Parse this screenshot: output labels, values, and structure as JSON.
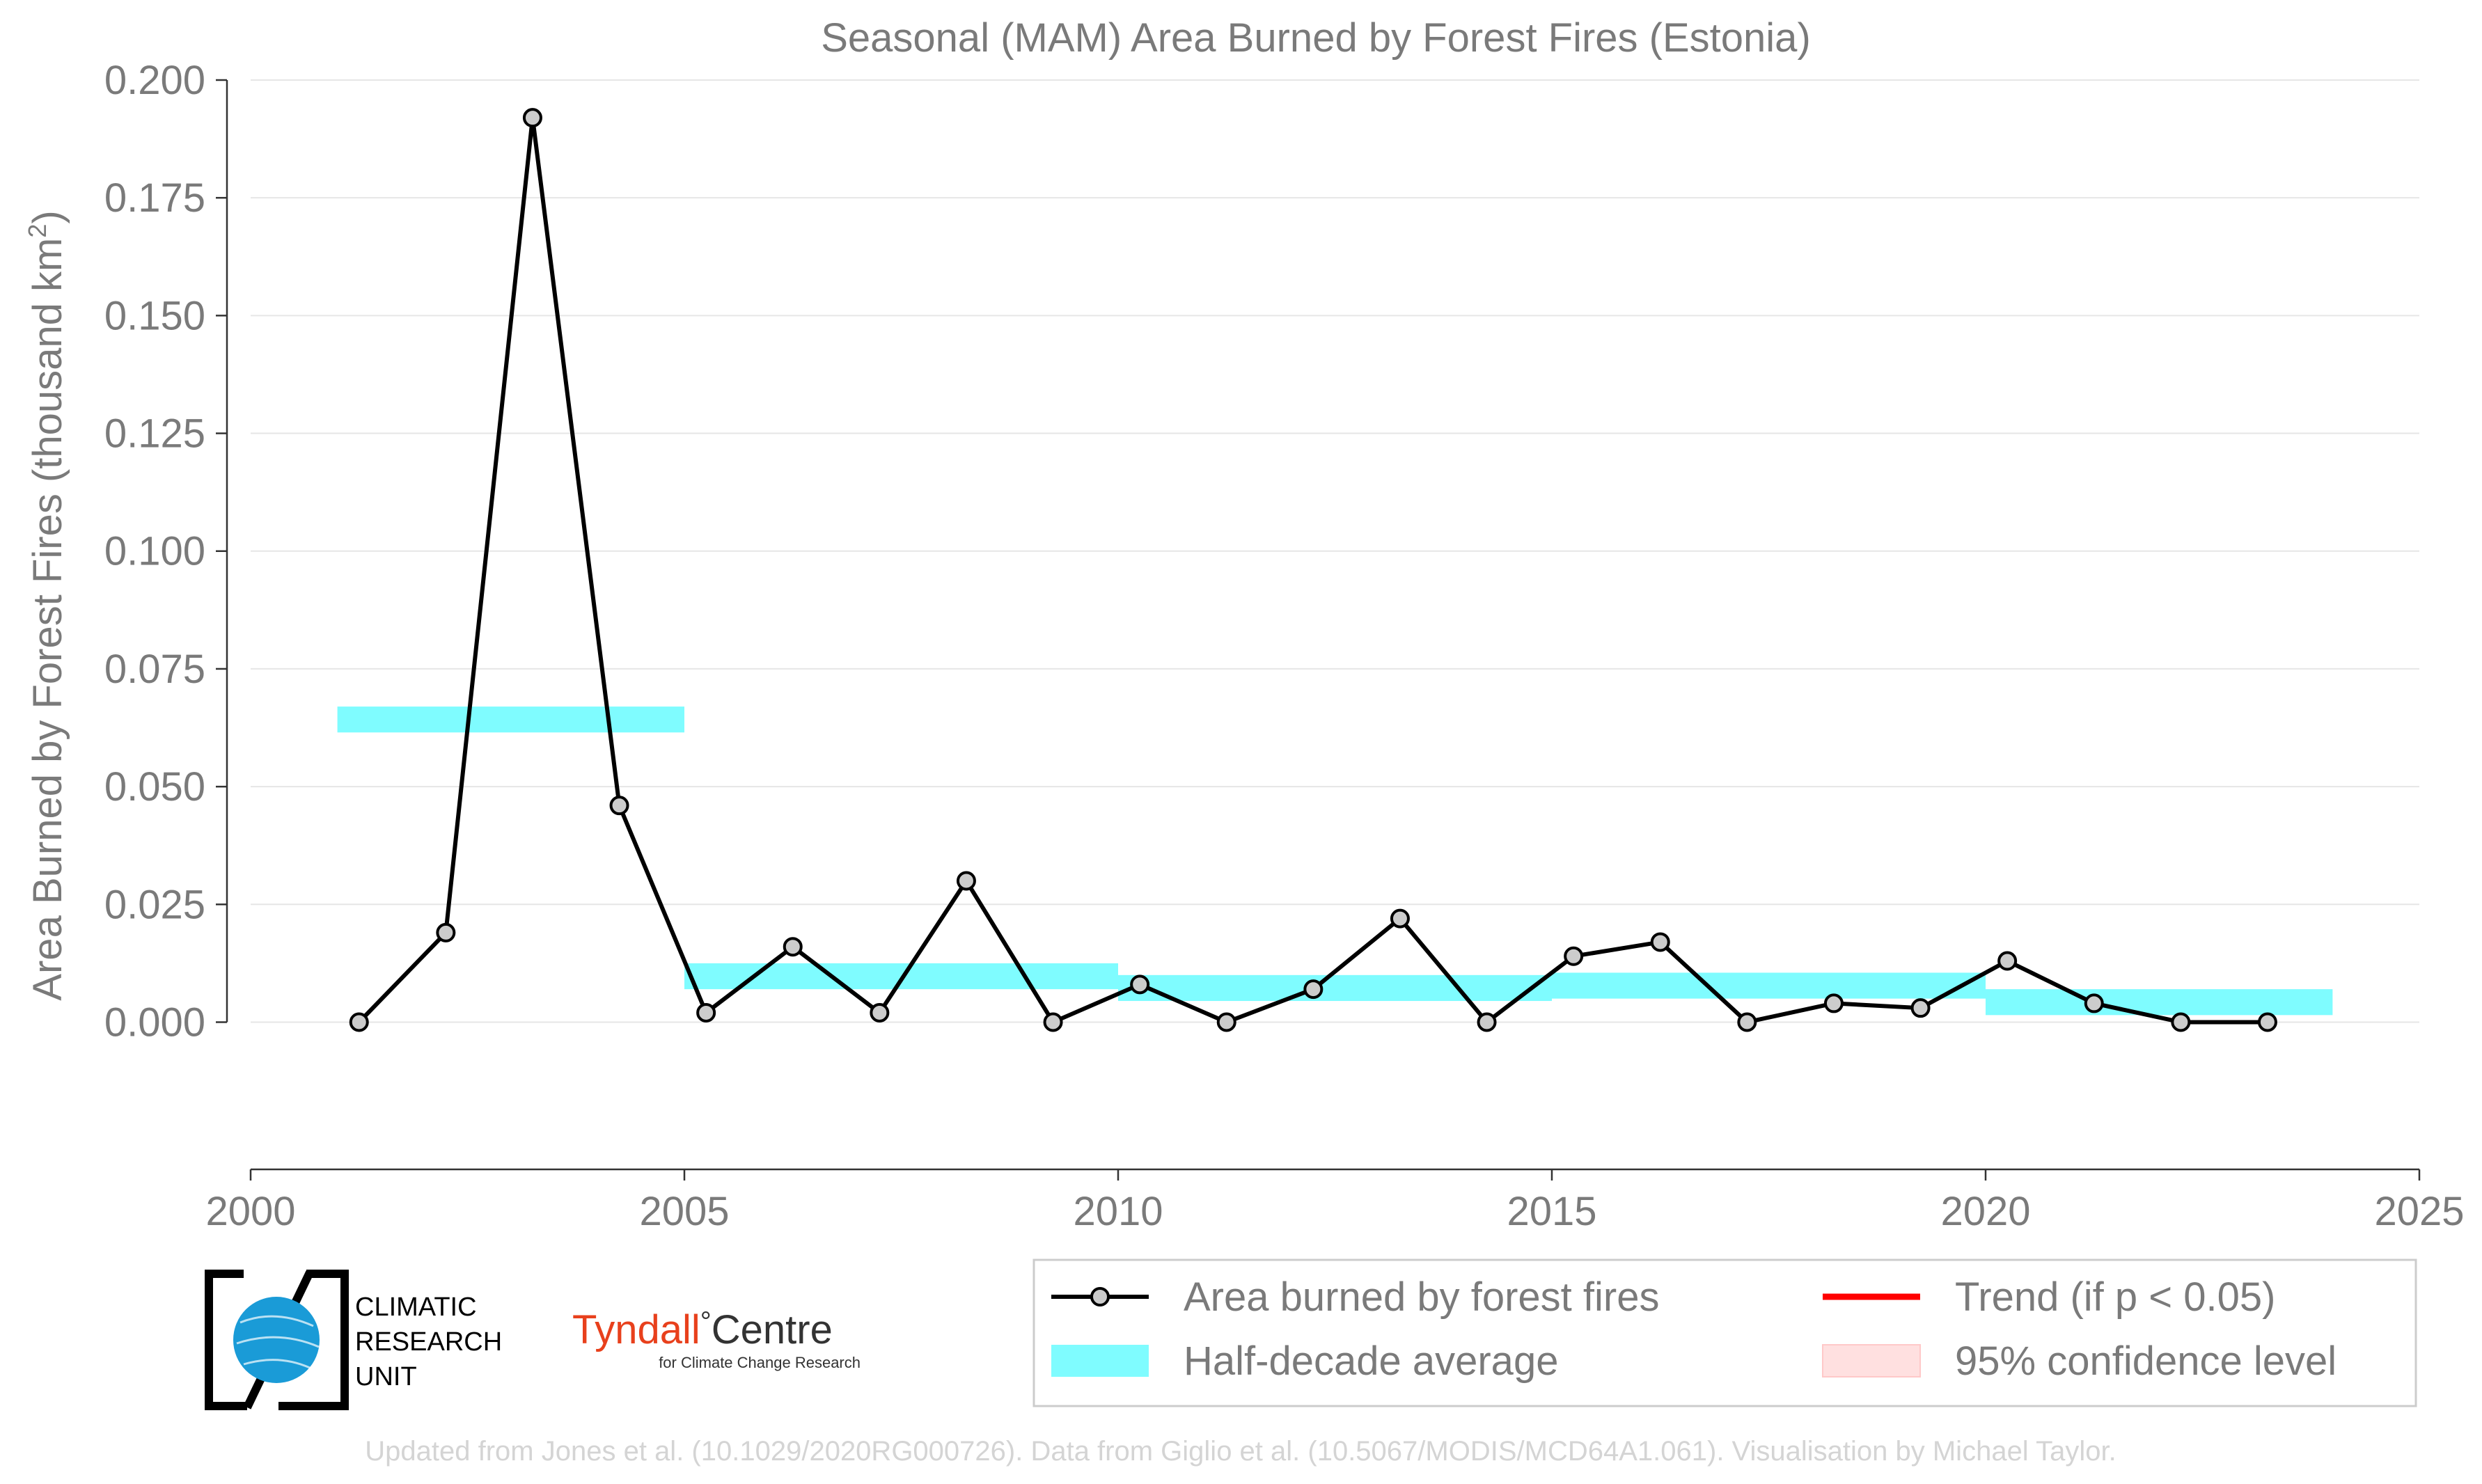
{
  "chart_data": {
    "type": "line",
    "title": "Seasonal (MAM) Area Burned by Forest Fires (Estonia)",
    "ylabel": "Area Burned by Forest Fires (thousand km",
    "ylabel_sup": "2",
    "ylabel_close": ")",
    "xlabel": "",
    "xlim": [
      2000,
      2025
    ],
    "ylim": [
      -0.015,
      0.2
    ],
    "x_ticks": [
      "2000",
      "2005",
      "2010",
      "2015",
      "2020",
      "2025"
    ],
    "y_ticks": [
      "0.000",
      "0.025",
      "0.050",
      "0.075",
      "0.100",
      "0.125",
      "0.150",
      "0.175",
      "0.200"
    ],
    "grid": "horizontal",
    "series": [
      {
        "name": "Area burned by forest fires",
        "color": "#000000",
        "marker_fill": "#cccccc",
        "x": [
          2001.25,
          2002.25,
          2003.25,
          2004.25,
          2005.25,
          2006.25,
          2007.25,
          2008.25,
          2009.25,
          2010.25,
          2011.25,
          2012.25,
          2013.25,
          2014.25,
          2015.25,
          2016.25,
          2017.25,
          2018.25,
          2019.25,
          2020.25,
          2021.25,
          2022.25,
          2023.25
        ],
        "y": [
          0.0,
          0.019,
          0.192,
          0.046,
          0.002,
          0.016,
          0.002,
          0.03,
          0.0,
          0.008,
          0.0,
          0.007,
          0.022,
          0.0,
          0.014,
          0.017,
          0.0,
          0.004,
          0.003,
          0.013,
          0.004,
          0.0,
          0.0
        ]
      }
    ],
    "half_decade_average": {
      "name": "Half-decade average",
      "color": "#7ffcff",
      "bands": [
        {
          "x_start": 2001,
          "x_end": 2005,
          "low": 0.0615,
          "high": 0.067
        },
        {
          "x_start": 2005,
          "x_end": 2010,
          "low": 0.007,
          "high": 0.0125
        },
        {
          "x_start": 2010,
          "x_end": 2015,
          "low": 0.0045,
          "high": 0.01
        },
        {
          "x_start": 2015,
          "x_end": 2020,
          "low": 0.005,
          "high": 0.0105
        },
        {
          "x_start": 2020,
          "x_end": 2024,
          "low": 0.0015,
          "high": 0.007
        }
      ]
    },
    "legend": {
      "placement": "bottom-right",
      "entries": [
        {
          "label": "Area burned by forest fires",
          "kind": "line-marker",
          "color": "#000000"
        },
        {
          "label": "Trend (if p < 0.05)",
          "kind": "line",
          "color": "#ff0000"
        },
        {
          "label": "Half-decade average",
          "kind": "band",
          "color": "#7ffcff"
        },
        {
          "label": "95% confidence level",
          "kind": "band",
          "color": "#ffe0e0"
        }
      ]
    }
  },
  "logos": {
    "cru_lines": [
      "CLIMATIC",
      "RESEARCH",
      "UNIT"
    ],
    "tyndall_main_a": "Tyndall",
    "tyndall_degree": "°",
    "tyndall_main_b": "Centre",
    "tyndall_sub": "for Climate Change Research",
    "tyndall_color": "#e8401c",
    "cru_globe_color": "#1a9bd7"
  },
  "footer": "Updated from Jones et al. (10.1029/2020RG000726). Data from Giglio et al. (10.5067/MODIS/MCD64A1.061). Visualisation by Michael Taylor."
}
